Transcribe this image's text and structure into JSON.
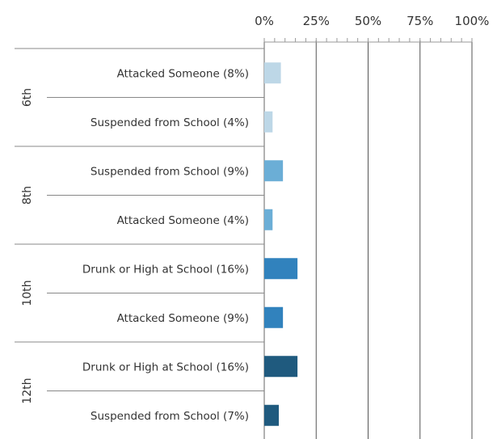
{
  "chart_data": {
    "type": "bar",
    "orientation": "horizontal",
    "title": "",
    "xlabel": "",
    "ylabel": "",
    "xlim": [
      0,
      100
    ],
    "x_ticks": [
      "0%",
      "25%",
      "50%",
      "75%",
      "100%"
    ],
    "grid": true,
    "legend": "none",
    "groups": [
      {
        "name": "6th",
        "color": "#bdd7e7",
        "bars": [
          {
            "label": "Attacked Someone (8%)",
            "value": 8
          },
          {
            "label": "Suspended from School (4%)",
            "value": 4
          }
        ]
      },
      {
        "name": "8th",
        "color": "#6baed6",
        "bars": [
          {
            "label": "Suspended from School (9%)",
            "value": 9
          },
          {
            "label": "Attacked Someone (4%)",
            "value": 4
          }
        ]
      },
      {
        "name": "10th",
        "color": "#3182bd",
        "bars": [
          {
            "label": "Drunk or High at School (16%)",
            "value": 16
          },
          {
            "label": "Attacked Someone (9%)",
            "value": 9
          }
        ]
      },
      {
        "name": "12th",
        "color": "#1f5a7e",
        "bars": [
          {
            "label": "Drunk or High at School (16%)",
            "value": 16
          },
          {
            "label": "Suspended from School (7%)",
            "value": 7
          }
        ]
      }
    ]
  }
}
